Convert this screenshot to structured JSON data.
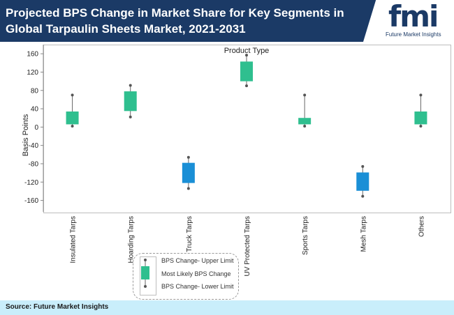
{
  "header": {
    "title": "Projected BPS Change in Market Share for Key Segments in Global Tarpaulin Sheets Market, 2021-2031"
  },
  "logo": {
    "mark": "fmi",
    "name": "Future Market Insights"
  },
  "footer": {
    "source": "Source: Future Market Insights"
  },
  "colors": {
    "header_bg": "#1b3a66",
    "green": "#2fbf8f",
    "blue": "#1a8fd6",
    "footer_bg": "#c9eefb"
  },
  "chart_data": {
    "type": "boxplot",
    "title": "Product Type",
    "ylabel": "Basis Points",
    "ylim": [
      -185,
      180
    ],
    "yticks": [
      160,
      120,
      80,
      40,
      0,
      -40,
      -80,
      -120,
      -160
    ],
    "categories": [
      "Insulated Tarps",
      "Hoarding Tarps",
      "Truck Tarps",
      "UV Protected Tarps",
      "Sports Tarps",
      "Mesh Tarps",
      "Others"
    ],
    "series": [
      {
        "category": "Insulated Tarps",
        "upper": 70,
        "box_high": 34,
        "box_low": 6,
        "lower": 2,
        "color": "green"
      },
      {
        "category": "Hoarding Tarps",
        "upper": 91,
        "box_high": 78,
        "box_low": 35,
        "lower": 22,
        "color": "green"
      },
      {
        "category": "Truck Tarps",
        "upper": -66,
        "box_high": -78,
        "box_low": -122,
        "lower": -134,
        "color": "blue"
      },
      {
        "category": "UV Protected Tarps",
        "upper": 157,
        "box_high": 143,
        "box_low": 100,
        "lower": 90,
        "color": "green"
      },
      {
        "category": "Sports Tarps",
        "upper": 70,
        "box_high": 20,
        "box_low": 6,
        "lower": 2,
        "color": "green"
      },
      {
        "category": "Mesh Tarps",
        "upper": -86,
        "box_high": -99,
        "box_low": -139,
        "lower": -151,
        "color": "blue"
      },
      {
        "category": "Others",
        "upper": 70,
        "box_high": 34,
        "box_low": 6,
        "lower": 2,
        "color": "green"
      }
    ],
    "legend": {
      "placement": "bottom-center",
      "upper": "BPS Change- Upper Limit",
      "likely": "Most Likely BPS Change",
      "lower": "BPS Change- Lower Limit"
    }
  }
}
